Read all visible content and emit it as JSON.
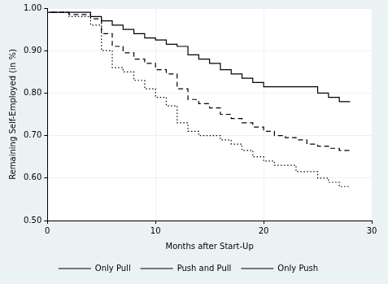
{
  "chart_data": {
    "type": "line",
    "x_label": "Months after Start-Up",
    "y_label": "Remaining Self-Employed (in %)",
    "xlim": [
      0,
      30
    ],
    "xticks": [
      0,
      10,
      20,
      30
    ],
    "ylim": [
      0.5,
      1.0
    ],
    "yticks": [
      {
        "value": 0.5,
        "label": "0.50"
      },
      {
        "value": 0.6,
        "label": "0.60"
      },
      {
        "value": 0.7,
        "label": "0.70"
      },
      {
        "value": 0.8,
        "label": "0.80"
      },
      {
        "value": 0.9,
        "label": "0.90"
      },
      {
        "value": 1.0,
        "label": "1.00"
      }
    ],
    "grid": true,
    "legend": "bottom",
    "series": [
      {
        "name": "Only Pull",
        "color": "#000000",
        "line_style": "solid",
        "marker": "none",
        "x": [
          0,
          4,
          5,
          6,
          7,
          8,
          9,
          10,
          11,
          12,
          13,
          14,
          15,
          16,
          17,
          18,
          19,
          20,
          25,
          26,
          27,
          28
        ],
        "values": [
          1.0,
          0.99,
          0.98,
          0.97,
          0.96,
          0.95,
          0.94,
          0.93,
          0.925,
          0.915,
          0.91,
          0.89,
          0.88,
          0.87,
          0.855,
          0.845,
          0.835,
          0.825,
          0.815,
          0.8,
          0.79,
          0.78
        ]
      },
      {
        "name": "Push and Pull",
        "color": "#000000",
        "line_style": "dashed",
        "marker": "none",
        "x": [
          0,
          2,
          4,
          5,
          6,
          7,
          8,
          9,
          10,
          11,
          12,
          13,
          14,
          15,
          16,
          17,
          18,
          19,
          20,
          21,
          22,
          23,
          24,
          25,
          26,
          27,
          28
        ],
        "values": [
          1.0,
          0.99,
          0.985,
          0.975,
          0.94,
          0.91,
          0.895,
          0.88,
          0.87,
          0.855,
          0.845,
          0.81,
          0.785,
          0.775,
          0.765,
          0.75,
          0.74,
          0.73,
          0.72,
          0.71,
          0.7,
          0.695,
          0.69,
          0.68,
          0.675,
          0.67,
          0.665
        ]
      },
      {
        "name": "Only Push",
        "color": "#000000",
        "line_style": "dotted",
        "marker": "none",
        "x": [
          0,
          2,
          4,
          5,
          6,
          7,
          8,
          9,
          10,
          11,
          12,
          13,
          14,
          16,
          17,
          18,
          19,
          20,
          21,
          23,
          25,
          26,
          27,
          28
        ],
        "values": [
          1.0,
          0.99,
          0.98,
          0.96,
          0.9,
          0.86,
          0.85,
          0.83,
          0.81,
          0.79,
          0.77,
          0.73,
          0.71,
          0.7,
          0.69,
          0.68,
          0.665,
          0.65,
          0.64,
          0.63,
          0.615,
          0.6,
          0.59,
          0.58
        ]
      }
    ]
  }
}
